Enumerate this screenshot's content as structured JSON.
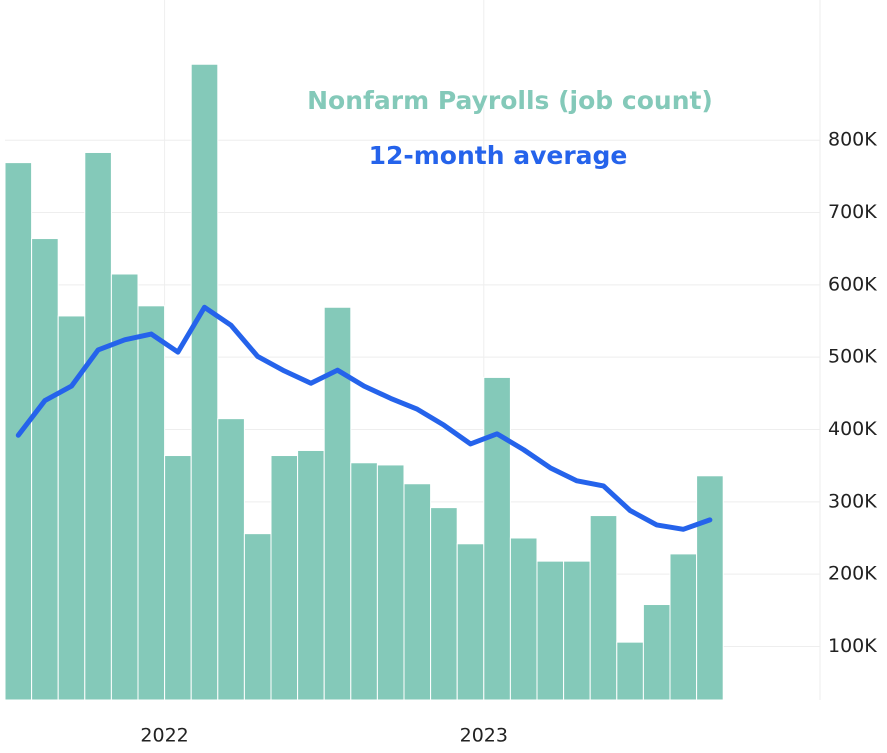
{
  "chart_data": {
    "type": "bar_line",
    "categories": [
      null,
      null,
      null,
      null,
      null,
      null,
      "2022",
      null,
      null,
      null,
      null,
      null,
      null,
      null,
      null,
      null,
      null,
      null,
      "2023",
      null,
      null,
      null,
      null,
      null,
      null,
      null,
      null
    ],
    "series": [
      {
        "name": "Nonfarm Payrolls (job count)",
        "color": "#84c9b9",
        "kind": "bar",
        "values": [
          769000,
          664000,
          557000,
          783000,
          615000,
          571000,
          364000,
          905000,
          415000,
          256000,
          364000,
          371000,
          569000,
          354000,
          351000,
          325000,
          292000,
          242000,
          472000,
          250000,
          218000,
          218000,
          281000,
          106000,
          158000,
          228000,
          336000
        ]
      },
      {
        "name": "12-month average",
        "color": "#2563eb",
        "kind": "line",
        "values": [
          392000,
          440000,
          460000,
          510000,
          524000,
          532000,
          507000,
          569000,
          544000,
          501000,
          481000,
          464000,
          482000,
          460000,
          443000,
          428000,
          406000,
          380000,
          394000,
          372000,
          347000,
          329000,
          322000,
          288000,
          268000,
          262000,
          275000
        ]
      }
    ],
    "ylim": [
      26000,
      980000
    ],
    "yticks": [
      {
        "value": 100000,
        "label": "100K"
      },
      {
        "value": 200000,
        "label": "200K"
      },
      {
        "value": 300000,
        "label": "300K"
      },
      {
        "value": 400000,
        "label": "400K"
      },
      {
        "value": 500000,
        "label": "500K"
      },
      {
        "value": 600000,
        "label": "600K"
      },
      {
        "value": 700000,
        "label": "700K"
      },
      {
        "value": 800000,
        "label": "800K"
      }
    ],
    "grid": true
  }
}
